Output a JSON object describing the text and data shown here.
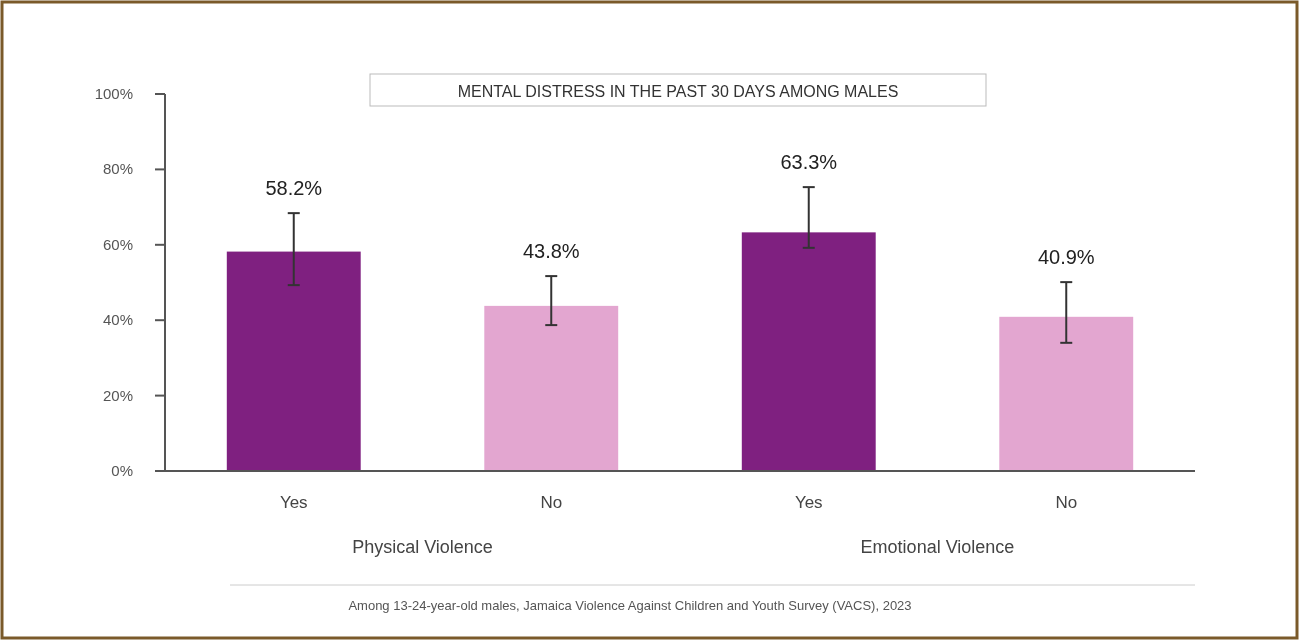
{
  "chart_data": {
    "type": "bar",
    "title": "MENTAL DISTRESS IN THE PAST 30 DAYS AMONG MALES",
    "categories": [
      "Yes",
      "No",
      "Yes",
      "No"
    ],
    "values": [
      58.2,
      43.8,
      63.3,
      40.9
    ],
    "colors": [
      "#7f2080",
      "#e3a6d0",
      "#7f2080",
      "#e3a6d0"
    ],
    "errors": [
      [
        49.3,
        68.4
      ],
      [
        38.7,
        51.7
      ],
      [
        59.2,
        75.3
      ],
      [
        34.0,
        50.1
      ]
    ],
    "value_labels": [
      "58.2%",
      "43.8%",
      "63.3%",
      "40.9%"
    ],
    "ylim": [
      0,
      100
    ],
    "yticks": [
      {
        "value": 0,
        "label": "0%"
      },
      {
        "value": 20,
        "label": "20%"
      },
      {
        "value": 40,
        "label": "40%"
      },
      {
        "value": 60,
        "label": "60%"
      },
      {
        "value": 80,
        "label": "80%"
      },
      {
        "value": 100,
        "label": "100%"
      }
    ],
    "annotations": [
      "Physical Violence",
      "Emotional Violence",
      "Among 13-24-year-old males, Jamaica Violence Against Children and Youth Survey (VACS), 2023"
    ]
  }
}
